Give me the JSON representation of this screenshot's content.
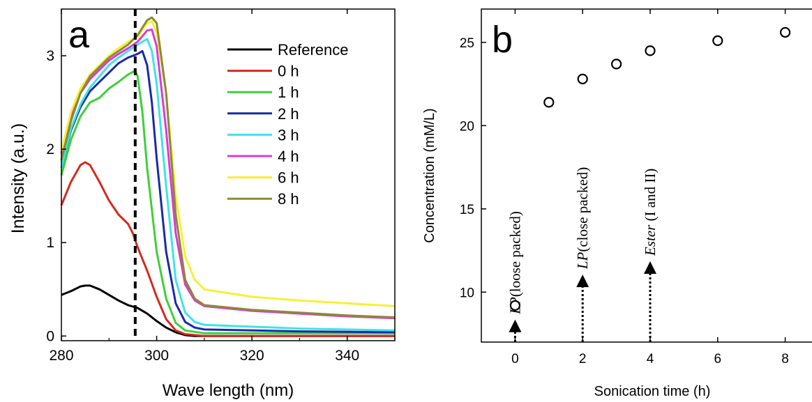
{
  "chart_data": [
    {
      "type": "line",
      "panel_label": "a",
      "xlabel": "Wave length (nm)",
      "ylabel": "Intensity (a.u.)",
      "xlim": [
        280,
        350
      ],
      "ylim": [
        -0.05,
        3.5
      ],
      "xticks": [
        280,
        300,
        320,
        340
      ],
      "yticks": [
        0,
        1,
        2,
        3
      ],
      "grid": false,
      "legend_position": "top-right",
      "reference_line": {
        "x": 295.5,
        "style": "dashed",
        "color": "#000000"
      },
      "series": [
        {
          "name": "Reference",
          "color": "#000000",
          "points": [
            [
              280,
              0.44
            ],
            [
              282,
              0.48
            ],
            [
              284,
              0.53
            ],
            [
              285,
              0.54
            ],
            [
              286,
              0.54
            ],
            [
              288,
              0.5
            ],
            [
              290,
              0.44
            ],
            [
              292,
              0.38
            ],
            [
              294,
              0.33
            ],
            [
              296,
              0.3
            ],
            [
              298,
              0.24
            ],
            [
              300,
              0.16
            ],
            [
              302,
              0.09
            ],
            [
              304,
              0.04
            ],
            [
              306,
              0.01
            ],
            [
              308,
              0.0
            ],
            [
              320,
              0.0
            ],
            [
              350,
              0.0
            ]
          ]
        },
        {
          "name": "0 h",
          "color": "#d42a20",
          "points": [
            [
              280,
              1.4
            ],
            [
              282,
              1.65
            ],
            [
              284,
              1.83
            ],
            [
              285,
              1.86
            ],
            [
              286,
              1.83
            ],
            [
              288,
              1.65
            ],
            [
              290,
              1.45
            ],
            [
              292,
              1.3
            ],
            [
              294,
              1.2
            ],
            [
              295,
              1.1
            ],
            [
              296,
              0.95
            ],
            [
              298,
              0.7
            ],
            [
              300,
              0.42
            ],
            [
              302,
              0.18
            ],
            [
              304,
              0.06
            ],
            [
              306,
              0.02
            ],
            [
              310,
              0.0
            ],
            [
              350,
              0.0
            ]
          ]
        },
        {
          "name": "1 h",
          "color": "#3fcf3a",
          "points": [
            [
              280,
              1.72
            ],
            [
              282,
              2.1
            ],
            [
              284,
              2.35
            ],
            [
              286,
              2.5
            ],
            [
              288,
              2.55
            ],
            [
              290,
              2.65
            ],
            [
              292,
              2.72
            ],
            [
              294,
              2.8
            ],
            [
              295.5,
              2.84
            ],
            [
              296,
              2.78
            ],
            [
              297,
              2.4
            ],
            [
              298,
              1.8
            ],
            [
              300,
              0.9
            ],
            [
              302,
              0.4
            ],
            [
              304,
              0.14
            ],
            [
              306,
              0.06
            ],
            [
              310,
              0.03
            ],
            [
              330,
              0.03
            ],
            [
              350,
              0.03
            ]
          ]
        },
        {
          "name": "2 h",
          "color": "#1a2aa8",
          "points": [
            [
              280,
              1.8
            ],
            [
              282,
              2.2
            ],
            [
              284,
              2.45
            ],
            [
              286,
              2.62
            ],
            [
              288,
              2.72
            ],
            [
              290,
              2.82
            ],
            [
              292,
              2.92
            ],
            [
              294,
              2.98
            ],
            [
              296,
              3.02
            ],
            [
              297,
              3.05
            ],
            [
              298,
              2.9
            ],
            [
              299,
              2.5
            ],
            [
              300,
              1.9
            ],
            [
              302,
              0.9
            ],
            [
              304,
              0.35
            ],
            [
              306,
              0.15
            ],
            [
              308,
              0.09
            ],
            [
              310,
              0.07
            ],
            [
              330,
              0.05
            ],
            [
              350,
              0.04
            ]
          ]
        },
        {
          "name": "3 h",
          "color": "#3fe3e8",
          "points": [
            [
              280,
              1.8
            ],
            [
              282,
              2.22
            ],
            [
              284,
              2.48
            ],
            [
              286,
              2.66
            ],
            [
              288,
              2.78
            ],
            [
              290,
              2.9
            ],
            [
              292,
              2.98
            ],
            [
              294,
              3.05
            ],
            [
              296,
              3.12
            ],
            [
              298,
              3.18
            ],
            [
              299,
              3.05
            ],
            [
              300,
              2.7
            ],
            [
              302,
              1.6
            ],
            [
              304,
              0.6
            ],
            [
              306,
              0.25
            ],
            [
              308,
              0.15
            ],
            [
              310,
              0.12
            ],
            [
              330,
              0.08
            ],
            [
              350,
              0.06
            ]
          ]
        },
        {
          "name": "4 h",
          "color": "#d93bd6",
          "points": [
            [
              280,
              1.95
            ],
            [
              282,
              2.35
            ],
            [
              284,
              2.6
            ],
            [
              286,
              2.75
            ],
            [
              288,
              2.85
            ],
            [
              290,
              2.95
            ],
            [
              292,
              3.02
            ],
            [
              294,
              3.08
            ],
            [
              296,
              3.15
            ],
            [
              298,
              3.27
            ],
            [
              299,
              3.28
            ],
            [
              300,
              3.1
            ],
            [
              302,
              2.2
            ],
            [
              304,
              1.1
            ],
            [
              306,
              0.55
            ],
            [
              308,
              0.38
            ],
            [
              310,
              0.32
            ],
            [
              320,
              0.27
            ],
            [
              330,
              0.24
            ],
            [
              340,
              0.21
            ],
            [
              350,
              0.19
            ]
          ]
        },
        {
          "name": "6 h",
          "color": "#f5f03a",
          "points": [
            [
              280,
              1.98
            ],
            [
              282,
              2.4
            ],
            [
              284,
              2.65
            ],
            [
              286,
              2.8
            ],
            [
              288,
              2.9
            ],
            [
              290,
              3.0
            ],
            [
              292,
              3.08
            ],
            [
              294,
              3.15
            ],
            [
              296,
              3.2
            ],
            [
              298,
              3.35
            ],
            [
              299,
              3.37
            ],
            [
              300,
              3.25
            ],
            [
              302,
              2.6
            ],
            [
              304,
              1.5
            ],
            [
              306,
              0.85
            ],
            [
              308,
              0.6
            ],
            [
              310,
              0.5
            ],
            [
              320,
              0.42
            ],
            [
              330,
              0.38
            ],
            [
              340,
              0.35
            ],
            [
              350,
              0.32
            ]
          ]
        },
        {
          "name": "8 h",
          "color": "#8a8a35",
          "points": [
            [
              280,
              1.88
            ],
            [
              282,
              2.3
            ],
            [
              284,
              2.6
            ],
            [
              286,
              2.78
            ],
            [
              288,
              2.88
            ],
            [
              290,
              2.98
            ],
            [
              292,
              3.05
            ],
            [
              294,
              3.12
            ],
            [
              296,
              3.22
            ],
            [
              298,
              3.38
            ],
            [
              299,
              3.41
            ],
            [
              300,
              3.35
            ],
            [
              302,
              2.6
            ],
            [
              304,
              1.3
            ],
            [
              306,
              0.6
            ],
            [
              308,
              0.4
            ],
            [
              310,
              0.33
            ],
            [
              320,
              0.28
            ],
            [
              330,
              0.25
            ],
            [
              340,
              0.22
            ],
            [
              350,
              0.2
            ]
          ]
        }
      ]
    },
    {
      "type": "scatter",
      "panel_label": "b",
      "xlabel": "Sonication time (h)",
      "ylabel": "Concentration (mM/L)",
      "xlim": [
        -1,
        9
      ],
      "ylim": [
        7,
        27
      ],
      "xticks": [
        0,
        2,
        4,
        6,
        8
      ],
      "yticks": [
        10,
        15,
        20,
        25
      ],
      "grid": false,
      "marker": "open-circle",
      "x": [
        0,
        1,
        2,
        3,
        4,
        6,
        8
      ],
      "y": [
        9.2,
        21.4,
        22.8,
        23.7,
        24.5,
        25.1,
        25.6
      ],
      "annotations": [
        {
          "x": 0,
          "arrow_from": 7,
          "arrow_to": 8.1,
          "italic": "LP",
          "text": "(loose packed)"
        },
        {
          "x": 2,
          "arrow_from": 7,
          "arrow_to": 10.8,
          "italic": "LP",
          "text": "(close packed)"
        },
        {
          "x": 4,
          "arrow_from": 7,
          "arrow_to": 11.6,
          "italic": "Ester",
          "text": " (I and II)"
        }
      ]
    }
  ]
}
